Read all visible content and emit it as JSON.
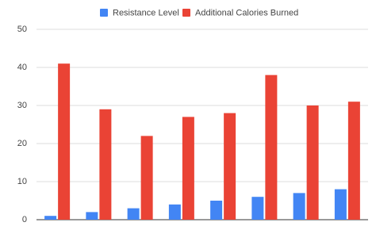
{
  "chart_data": {
    "type": "bar",
    "categories": [
      null,
      null,
      null,
      null,
      null,
      null,
      null,
      null
    ],
    "series": [
      {
        "name": "Resistance Level",
        "color": "#4285f4",
        "values": [
          1,
          2,
          3,
          4,
          5,
          6,
          7,
          8
        ]
      },
      {
        "name": "Additional Calories Burned",
        "color": "#ea4335",
        "values": [
          41,
          29,
          22,
          27,
          28,
          38,
          30,
          31
        ]
      }
    ],
    "ylim": [
      0,
      50
    ],
    "yticks": [
      0,
      10,
      20,
      30,
      40,
      50
    ],
    "grid": true,
    "legend": "top"
  }
}
